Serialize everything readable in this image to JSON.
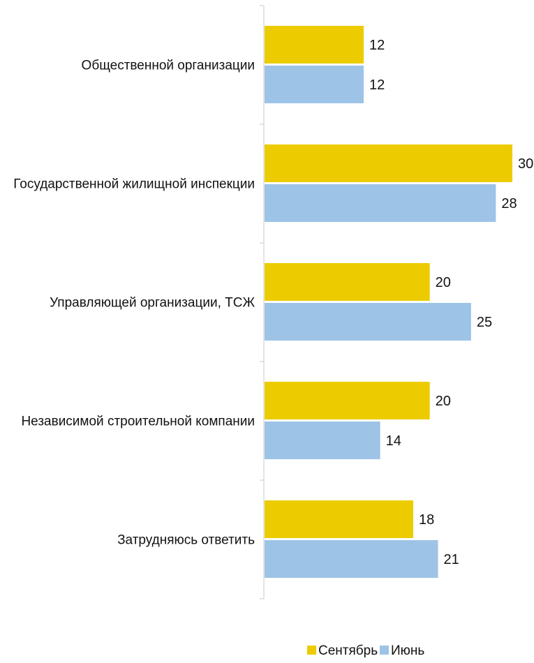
{
  "chart_data": {
    "type": "bar",
    "orientation": "horizontal",
    "categories": [
      "Общественной организации",
      "Государственной жилищной инспекции",
      "Управляющей организации, ТСЖ",
      "Независимой строительной компании",
      "Затрудняюсь ответить"
    ],
    "series": [
      {
        "name": "Сентябрь",
        "color": "#ECCC00",
        "values": [
          12,
          30,
          20,
          20,
          18
        ]
      },
      {
        "name": "Июнь",
        "color": "#9DC3E6",
        "values": [
          12,
          28,
          25,
          14,
          21
        ]
      }
    ],
    "xlim": [
      0,
      30
    ],
    "grid": false,
    "legend_position": "bottom"
  }
}
